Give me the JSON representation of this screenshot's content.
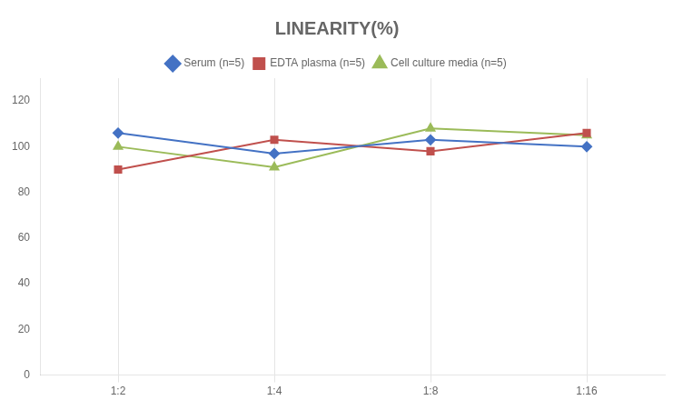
{
  "chart_data": {
    "type": "line",
    "title": "LINEARITY(%)",
    "categories": [
      "1:2",
      "1:4",
      "1:8",
      "1:16"
    ],
    "series": [
      {
        "name": "Serum (n=5)",
        "color": "#4472C4",
        "marker": "diamond",
        "values": [
          106,
          97,
          103,
          100
        ]
      },
      {
        "name": "EDTA plasma (n=5)",
        "color": "#C0504D",
        "marker": "square",
        "values": [
          90,
          103,
          98,
          106
        ]
      },
      {
        "name": "Cell culture media (n=5)",
        "color": "#9BBB59",
        "marker": "triangle",
        "values": [
          100,
          91,
          108,
          105
        ]
      }
    ],
    "ylim": [
      0,
      130
    ],
    "yticks": [
      0,
      20,
      40,
      60,
      80,
      100,
      120
    ],
    "grid": "x",
    "legend": "top"
  }
}
